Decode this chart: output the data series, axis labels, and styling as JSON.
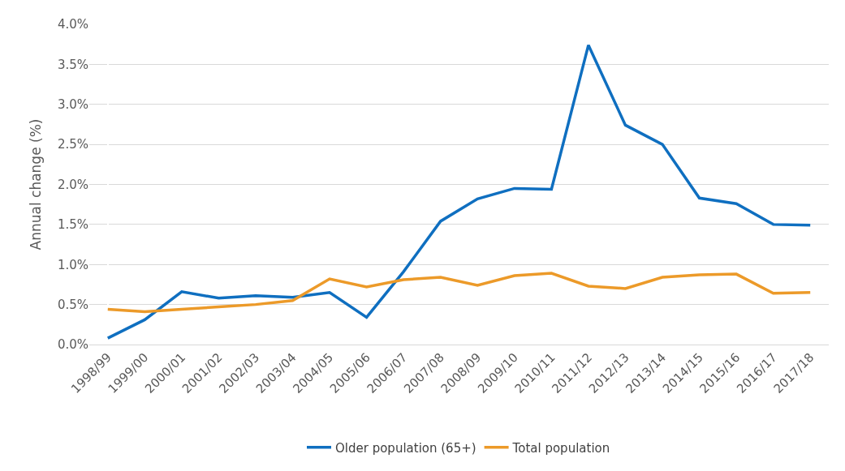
{
  "chart_data": {
    "type": "line",
    "ylabel": "Annual change (%)",
    "categories": [
      "1998/99",
      "1999/00",
      "2000/01",
      "2001/02",
      "2002/03",
      "2003/04",
      "2004/05",
      "2005/06",
      "2006/07",
      "2007/08",
      "2008/09",
      "2009/10",
      "2010/11",
      "2011/12",
      "2012/13",
      "2013/14",
      "2014/15",
      "2015/16",
      "2016/17",
      "2017/18"
    ],
    "series": [
      {
        "name": "Older population (65+)",
        "color": "#0f6fc0",
        "values": [
          0.08,
          0.31,
          0.66,
          0.58,
          0.61,
          0.59,
          0.65,
          0.34,
          0.91,
          1.54,
          1.82,
          1.95,
          1.94,
          3.74,
          2.74,
          2.5,
          1.83,
          1.76,
          1.5,
          1.49
        ]
      },
      {
        "name": "Total population",
        "color": "#ec9a29",
        "values": [
          0.44,
          0.41,
          0.44,
          0.47,
          0.5,
          0.55,
          0.82,
          0.72,
          0.81,
          0.84,
          0.74,
          0.86,
          0.89,
          0.73,
          0.7,
          0.84,
          0.87,
          0.88,
          0.64,
          0.65
        ]
      }
    ],
    "ylim": [
      0,
      4
    ],
    "yticks": [
      {
        "value": 0,
        "label": "0.0%"
      },
      {
        "value": 0.5,
        "label": "0.5%"
      },
      {
        "value": 1,
        "label": "1.0%"
      },
      {
        "value": 1.5,
        "label": "1.5%"
      },
      {
        "value": 2,
        "label": "2.0%"
      },
      {
        "value": 2.5,
        "label": "2.5%"
      },
      {
        "value": 3,
        "label": "3.0%"
      },
      {
        "value": 3.5,
        "label": "3.5%"
      },
      {
        "value": 4,
        "label": "4.0%"
      }
    ],
    "grid": "y",
    "legend": "bottom",
    "marker": "none",
    "line_style": "solid"
  }
}
